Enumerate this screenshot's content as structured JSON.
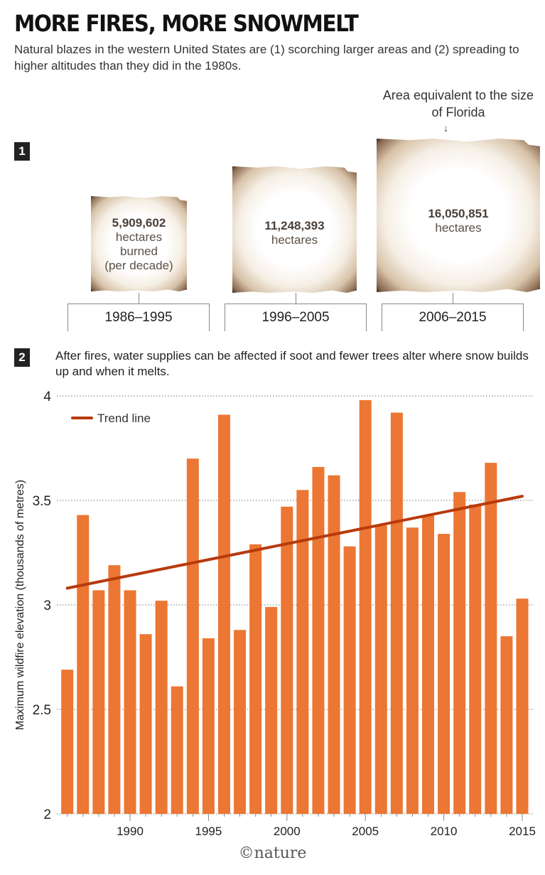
{
  "header": {
    "title": "MORE FIRES, MORE SNOWMELT",
    "subtitle": "Natural blazes in the western United States are (1) scorching larger areas and (2) spreading to higher altitudes than they did in the 1980s."
  },
  "section1": {
    "badge": "1",
    "annotation": "Area equivalent to the size of Florida",
    "decades": [
      {
        "period": "1986–1995",
        "value": "5,909,602",
        "unit": "hectares",
        "extra1": "burned",
        "extra2": "(per decade)",
        "hectares": 5909602
      },
      {
        "period": "1996–2005",
        "value": "11,248,393",
        "unit": "hectares",
        "hectares": 11248393
      },
      {
        "period": "2006–2015",
        "value": "16,050,851",
        "unit": "hectares",
        "hectares": 16050851
      }
    ]
  },
  "section2": {
    "badge": "2",
    "text": "After fires, water supplies can be affected if soot and fewer trees alter where snow builds up and when it melts."
  },
  "chart_data": {
    "type": "bar",
    "title": "",
    "xlabel": "",
    "ylabel": "Maximum wildfire elevation (thousands of metres)",
    "ylim": [
      2,
      4
    ],
    "yticks": [
      "2",
      "2.5",
      "3",
      "3.5",
      "4"
    ],
    "xticks": [
      "1990",
      "1995",
      "2000",
      "2005",
      "2010",
      "2015"
    ],
    "grid": true,
    "legend_position": "top-left",
    "bar_color": "#ec7633",
    "categories": [
      1986,
      1987,
      1988,
      1989,
      1990,
      1991,
      1992,
      1993,
      1994,
      1995,
      1996,
      1997,
      1998,
      1999,
      2000,
      2001,
      2002,
      2003,
      2004,
      2005,
      2006,
      2007,
      2008,
      2009,
      2010,
      2011,
      2012,
      2013,
      2014,
      2015
    ],
    "values": [
      2.69,
      3.43,
      3.07,
      3.19,
      3.07,
      2.86,
      3.02,
      2.61,
      3.7,
      2.84,
      3.91,
      2.88,
      3.29,
      2.99,
      3.47,
      3.55,
      3.66,
      3.62,
      3.28,
      3.98,
      3.38,
      3.92,
      3.37,
      3.43,
      3.34,
      3.54,
      3.48,
      3.68,
      2.85,
      3.03
    ],
    "trend": {
      "name": "Trend line",
      "color": "#b83a0c",
      "start": [
        1986,
        3.08
      ],
      "end": [
        2015,
        3.52
      ]
    }
  },
  "footer": {
    "logo": "©nature"
  }
}
